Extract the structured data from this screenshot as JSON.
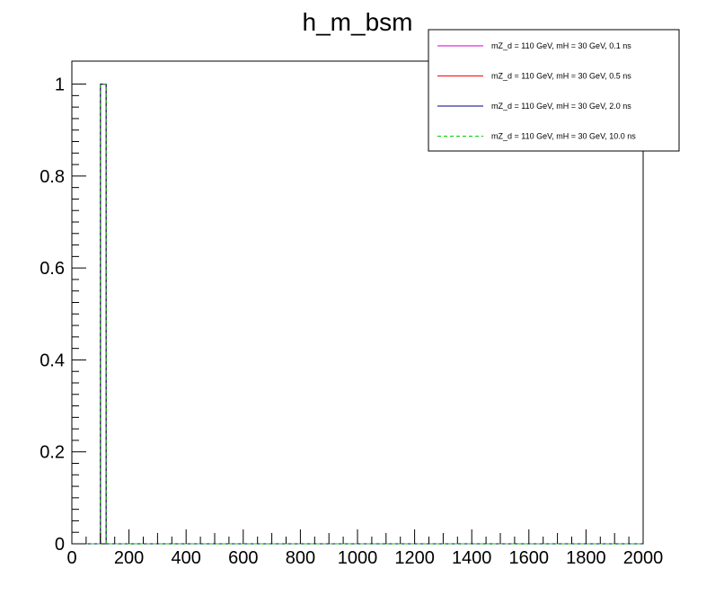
{
  "chart_data": {
    "type": "bar",
    "title": "h_m_bsm",
    "xlabel": "",
    "ylabel": "",
    "xlim": [
      0,
      2000
    ],
    "ylim": [
      0,
      1.05
    ],
    "x_ticks": [
      0,
      200,
      400,
      600,
      800,
      1000,
      1200,
      1400,
      1600,
      1800,
      2000
    ],
    "y_ticks": [
      0,
      0.2,
      0.4,
      0.6,
      0.8,
      1
    ],
    "x_tick_labels": [
      "0",
      "200",
      "400",
      "600",
      "800",
      "1000",
      "1200",
      "1400",
      "1600",
      "1800",
      "2000"
    ],
    "y_tick_labels": [
      "0",
      "0.2",
      "0.4",
      "0.6",
      "0.8",
      "1"
    ],
    "grid": false,
    "legend_position": "top-right",
    "series": [
      {
        "name": "mZ_d = 110 GeV, mH = 30 GeV, 0.1 ns",
        "color": "#cc00cc",
        "dashed": false,
        "bins": [
          {
            "x0": 100,
            "x1": 120,
            "value": 1.0
          }
        ]
      },
      {
        "name": "mZ_d = 110 GeV, mH = 30 GeV, 0.5 ns",
        "color": "#ff0000",
        "dashed": false,
        "bins": [
          {
            "x0": 100,
            "x1": 120,
            "value": 1.0
          }
        ]
      },
      {
        "name": "mZ_d = 110 GeV, mH = 30 GeV, 2.0 ns",
        "color": "#000080",
        "dashed": false,
        "bins": [
          {
            "x0": 100,
            "x1": 120,
            "value": 1.0
          }
        ]
      },
      {
        "name": "mZ_d = 110 GeV, mH = 30 GeV, 10.0 ns",
        "color": "#00cc00",
        "dashed": true,
        "bins": [
          {
            "x0": 100,
            "x1": 120,
            "value": 1.0
          }
        ]
      }
    ]
  }
}
